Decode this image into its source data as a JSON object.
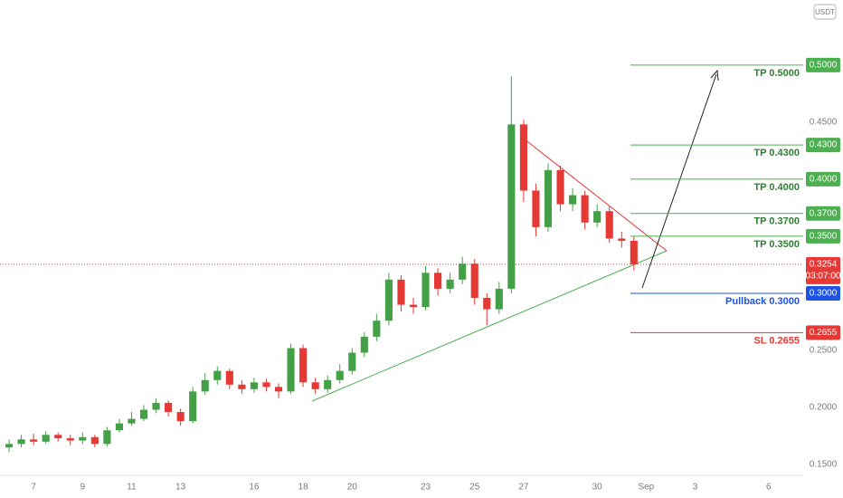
{
  "chart_data": {
    "type": "candlestick",
    "currency": "USDT",
    "up_color": "#43a047",
    "down_color": "#e53935",
    "xlim": [
      5.63,
      38.41
    ],
    "ylim": [
      0.1405,
      0.557
    ],
    "xticks": [
      7,
      9,
      11,
      13,
      16,
      18,
      20,
      23,
      25,
      27,
      30,
      {
        "value": 32,
        "label": "Sep"
      },
      {
        "value": 34,
        "label": "3"
      },
      {
        "value": 37,
        "label": "6"
      }
    ],
    "yticks": [
      {
        "value": 0.15,
        "label": "0.1500"
      },
      {
        "value": 0.2,
        "label": "0.2000"
      },
      {
        "value": 0.25,
        "label": "0.2500"
      },
      {
        "value": 0.45,
        "label": "0.4500"
      }
    ],
    "x": [
      6,
      6.5,
      7,
      7.5,
      8,
      8.5,
      9,
      9.5,
      10,
      10.5,
      11,
      11.5,
      12,
      12.5,
      13,
      13.5,
      14,
      14.5,
      15,
      15.5,
      16,
      16.5,
      17,
      17.5,
      18,
      18.5,
      19,
      19.5,
      20,
      20.5,
      21,
      21.5,
      22,
      22.5,
      23,
      23.5,
      24,
      24.5,
      25,
      25.5,
      26,
      26.5,
      27,
      27.5,
      28,
      28.5,
      29,
      29.5,
      30,
      30.5,
      31,
      31.5
    ],
    "open": [
      0.165,
      0.168,
      0.172,
      0.17,
      0.176,
      0.173,
      0.171,
      0.174,
      0.168,
      0.18,
      0.186,
      0.19,
      0.198,
      0.204,
      0.196,
      0.188,
      0.214,
      0.224,
      0.232,
      0.22,
      0.216,
      0.222,
      0.218,
      0.214,
      0.252,
      0.222,
      0.216,
      0.224,
      0.232,
      0.248,
      0.262,
      0.276,
      0.312,
      0.29,
      0.288,
      0.318,
      0.304,
      0.312,
      0.326,
      0.296,
      0.286,
      0.304,
      0.448,
      0.39,
      0.358,
      0.408,
      0.378,
      0.386,
      0.362,
      0.372,
      0.348,
      0.346
    ],
    "high": [
      0.172,
      0.176,
      0.177,
      0.179,
      0.178,
      0.176,
      0.178,
      0.176,
      0.183,
      0.19,
      0.196,
      0.202,
      0.208,
      0.206,
      0.199,
      0.218,
      0.23,
      0.236,
      0.234,
      0.224,
      0.226,
      0.225,
      0.221,
      0.256,
      0.255,
      0.226,
      0.228,
      0.238,
      0.252,
      0.266,
      0.282,
      0.318,
      0.316,
      0.296,
      0.324,
      0.322,
      0.318,
      0.332,
      0.33,
      0.3,
      0.31,
      0.49,
      0.452,
      0.396,
      0.414,
      0.412,
      0.392,
      0.39,
      0.378,
      0.376,
      0.354,
      0.35
    ],
    "low": [
      0.161,
      0.165,
      0.167,
      0.168,
      0.17,
      0.167,
      0.168,
      0.165,
      0.166,
      0.178,
      0.184,
      0.188,
      0.195,
      0.192,
      0.184,
      0.186,
      0.211,
      0.22,
      0.216,
      0.212,
      0.213,
      0.214,
      0.208,
      0.212,
      0.218,
      0.212,
      0.213,
      0.221,
      0.229,
      0.244,
      0.258,
      0.272,
      0.284,
      0.282,
      0.285,
      0.298,
      0.3,
      0.308,
      0.29,
      0.272,
      0.282,
      0.3,
      0.38,
      0.35,
      0.354,
      0.372,
      0.372,
      0.356,
      0.358,
      0.344,
      0.34,
      0.32
    ],
    "close": [
      0.168,
      0.172,
      0.17,
      0.176,
      0.173,
      0.171,
      0.174,
      0.168,
      0.18,
      0.186,
      0.19,
      0.198,
      0.204,
      0.196,
      0.188,
      0.214,
      0.224,
      0.232,
      0.22,
      0.216,
      0.222,
      0.218,
      0.214,
      0.252,
      0.222,
      0.216,
      0.224,
      0.232,
      0.248,
      0.262,
      0.276,
      0.312,
      0.29,
      0.288,
      0.318,
      0.304,
      0.312,
      0.326,
      0.296,
      0.286,
      0.304,
      0.448,
      0.39,
      0.358,
      0.408,
      0.378,
      0.386,
      0.362,
      0.372,
      0.348,
      0.346,
      0.3254
    ],
    "levels": [
      {
        "label": "TP 0.5000",
        "value": 0.5,
        "value_label": "0.5000",
        "color": "#4caf50",
        "text_color": "#2e7d32"
      },
      {
        "label": "TP 0.4300",
        "value": 0.43,
        "value_label": "0.4300",
        "color": "#4caf50",
        "text_color": "#2e7d32"
      },
      {
        "label": "TP 0.4000",
        "value": 0.4,
        "value_label": "0.4000",
        "color": "#4caf50",
        "text_color": "#2e7d32"
      },
      {
        "label": "TP 0.3700",
        "value": 0.37,
        "value_label": "0.3700",
        "color": "#4caf50",
        "text_color": "#2e7d32"
      },
      {
        "label": "TP 0.3500",
        "value": 0.35,
        "value_label": "0.3500",
        "color": "#4caf50",
        "text_color": "#2e7d32"
      },
      {
        "label": "Pullback 0.3000",
        "value": 0.3,
        "value_label": "0.3000",
        "color": "#1e53e5",
        "text_color": "#1e53e5"
      },
      {
        "label": "SL 0.2655",
        "value": 0.2655,
        "value_label": "0.2655",
        "color": "#e53935",
        "text_color": "#e53935"
      }
    ],
    "price": {
      "value": 0.3254,
      "value_label": "0.3254",
      "countdown": "03:07:00",
      "color": "#e53935"
    }
  }
}
